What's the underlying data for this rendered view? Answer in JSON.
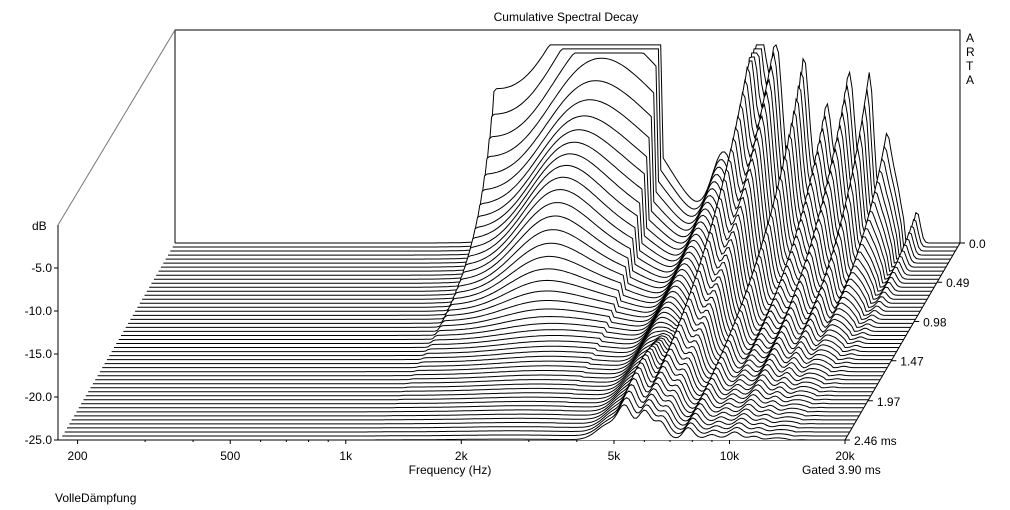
{
  "chart_data": {
    "type": "waterfall",
    "title": "Cumulative Spectral Decay",
    "watermark": "ARTA",
    "ylabel": "dB",
    "xlabel": "Frequency (Hz)",
    "zlabel_unit": "ms",
    "gated_label": "Gated 3.90 ms",
    "footer": "VolleDämpfung",
    "y_ticks": [
      "-5.0",
      "-10.0",
      "-15.0",
      "-20.0",
      "-25.0"
    ],
    "x_ticks": [
      {
        "f": 200,
        "label": "200"
      },
      {
        "f": 500,
        "label": "500"
      },
      {
        "f": 1000,
        "label": "1k"
      },
      {
        "f": 2000,
        "label": "2k"
      },
      {
        "f": 5000,
        "label": "5k"
      },
      {
        "f": 10000,
        "label": "10k"
      },
      {
        "f": 20000,
        "label": "20k"
      }
    ],
    "z_ticks": [
      {
        "t": 0.0,
        "label": "0.0"
      },
      {
        "t": 0.49,
        "label": "0.49"
      },
      {
        "t": 0.98,
        "label": "0.98"
      },
      {
        "t": 1.47,
        "label": "1.47"
      },
      {
        "t": 1.97,
        "label": "1.97"
      },
      {
        "t": 2.46,
        "label": "2.46 ms"
      }
    ],
    "ylim": [
      -25,
      0
    ],
    "xlim": [
      180,
      20000
    ],
    "zlim": [
      0,
      2.46
    ],
    "x_scale": "log",
    "slices": 50,
    "color": "#000000"
  }
}
